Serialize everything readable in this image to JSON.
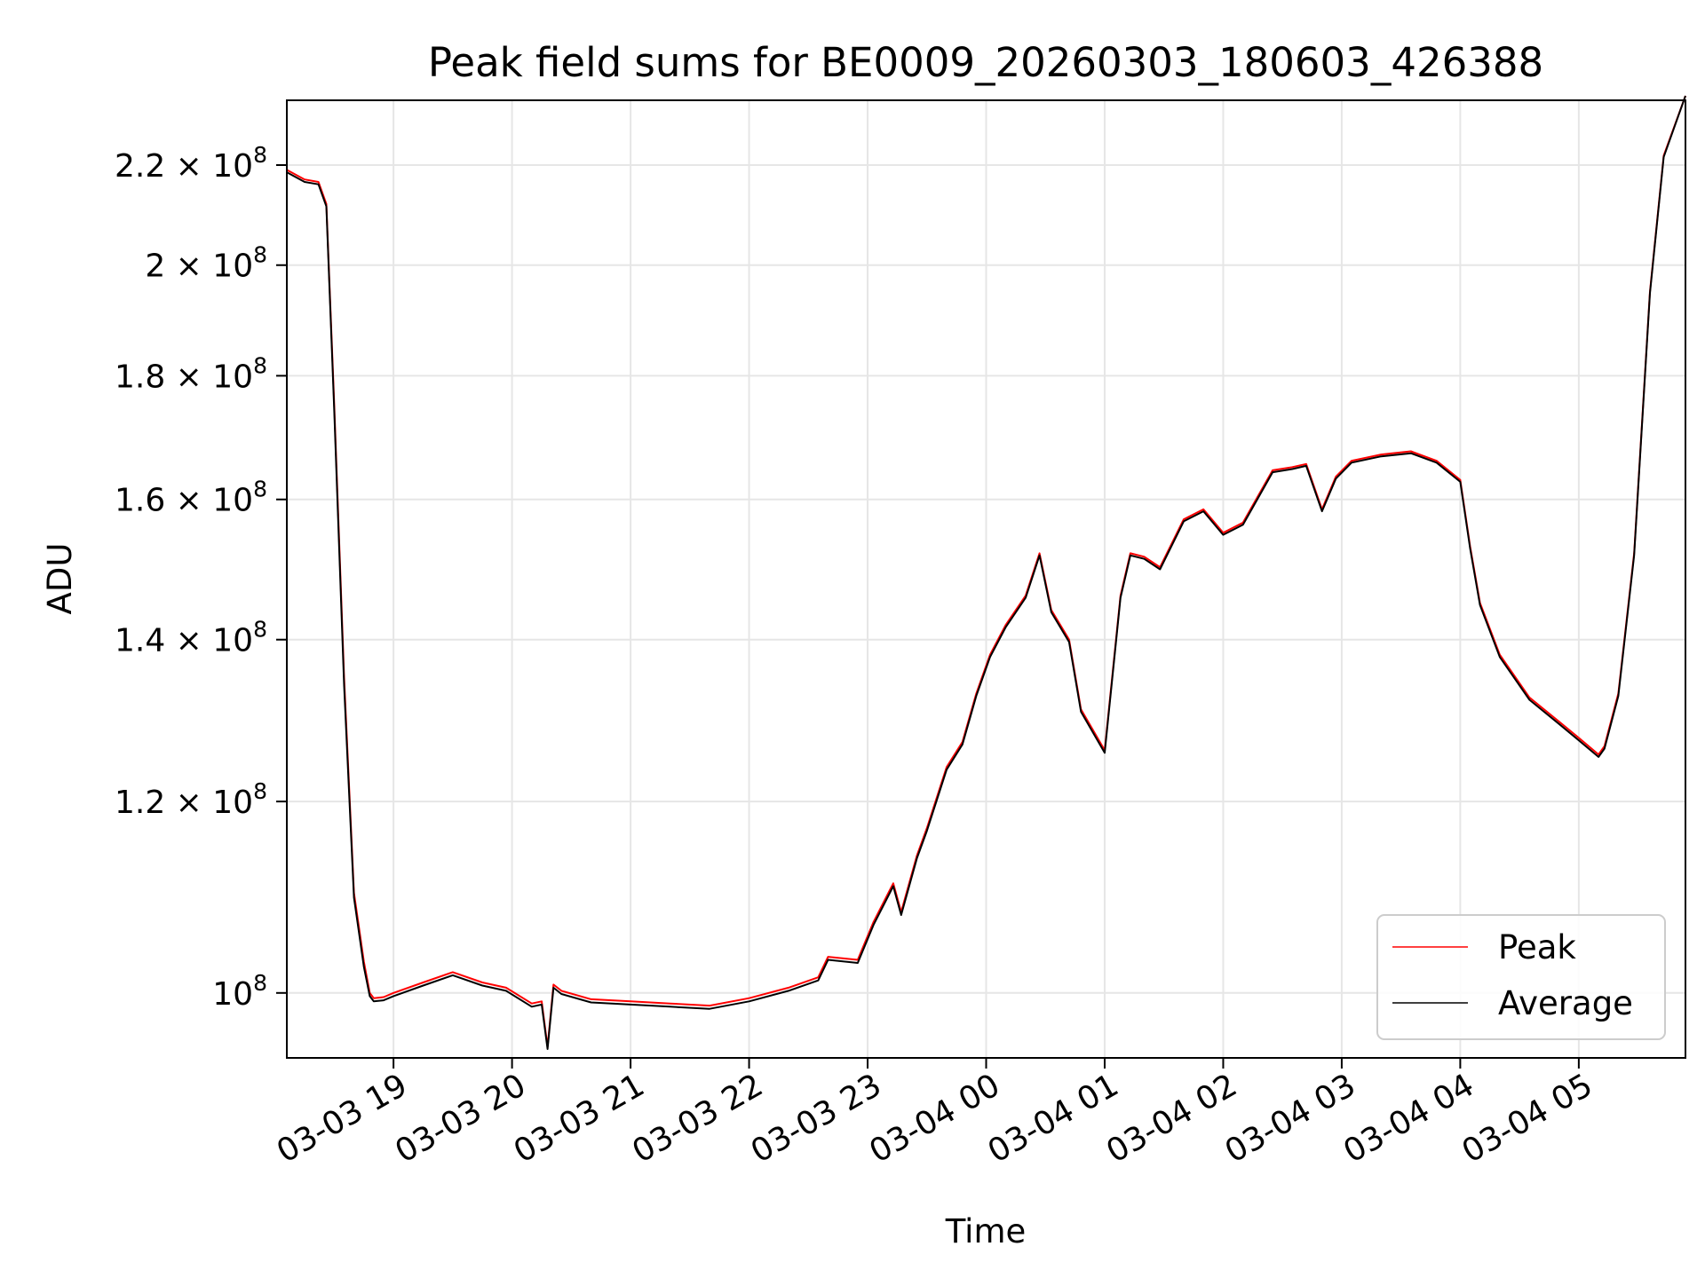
{
  "chart_data": {
    "type": "line",
    "title": "Peak field sums for BE0009_20260303_180603_426388",
    "xlabel": "Time",
    "ylabel": "ADU",
    "yscale": "log",
    "grid": true,
    "legend_placement": "lower-right",
    "xlim": [
      "2026-03-03 18:06",
      "2026-03-04 05:54"
    ],
    "ylim": [
      94000000,
      234000000
    ],
    "x_ticks": [
      {
        "value": "2026-03-03 19:00",
        "label": "03-03 19"
      },
      {
        "value": "2026-03-03 20:00",
        "label": "03-03 20"
      },
      {
        "value": "2026-03-03 21:00",
        "label": "03-03 21"
      },
      {
        "value": "2026-03-03 22:00",
        "label": "03-03 22"
      },
      {
        "value": "2026-03-03 23:00",
        "label": "03-03 23"
      },
      {
        "value": "2026-03-04 00:00",
        "label": "03-04 00"
      },
      {
        "value": "2026-03-04 01:00",
        "label": "03-04 01"
      },
      {
        "value": "2026-03-04 02:00",
        "label": "03-04 02"
      },
      {
        "value": "2026-03-04 03:00",
        "label": "03-04 03"
      },
      {
        "value": "2026-03-04 04:00",
        "label": "03-04 04"
      },
      {
        "value": "2026-03-04 05:00",
        "label": "03-04 05"
      }
    ],
    "y_ticks": [
      {
        "value": 100000000,
        "mantissa": "",
        "exponent": "8"
      },
      {
        "value": 120000000,
        "mantissa": "1.2",
        "exponent": "8"
      },
      {
        "value": 140000000,
        "mantissa": "1.4",
        "exponent": "8"
      },
      {
        "value": 160000000,
        "mantissa": "1.6",
        "exponent": "8"
      },
      {
        "value": 180000000,
        "mantissa": "1.8",
        "exponent": "8"
      },
      {
        "value": 200000000,
        "mantissa": "2",
        "exponent": "8"
      },
      {
        "value": 220000000,
        "mantissa": "2.2",
        "exponent": "8"
      }
    ],
    "x": [
      "2026-03-03 18:06",
      "2026-03-03 18:15",
      "2026-03-03 18:22",
      "2026-03-03 18:26",
      "2026-03-03 18:30",
      "2026-03-03 18:35",
      "2026-03-03 18:40",
      "2026-03-03 18:45",
      "2026-03-03 18:48",
      "2026-03-03 18:50",
      "2026-03-03 18:55",
      "2026-03-03 19:00",
      "2026-03-03 19:15",
      "2026-03-03 19:30",
      "2026-03-03 19:45",
      "2026-03-03 19:57",
      "2026-03-03 20:10",
      "2026-03-03 20:15",
      "2026-03-03 20:18",
      "2026-03-03 20:21",
      "2026-03-03 20:25",
      "2026-03-03 20:40",
      "2026-03-03 21:00",
      "2026-03-03 21:20",
      "2026-03-03 21:40",
      "2026-03-03 22:00",
      "2026-03-03 22:20",
      "2026-03-03 22:35",
      "2026-03-03 22:40",
      "2026-03-03 22:55",
      "2026-03-03 23:03",
      "2026-03-03 23:13",
      "2026-03-03 23:17",
      "2026-03-03 23:25",
      "2026-03-03 23:30",
      "2026-03-03 23:40",
      "2026-03-03 23:48",
      "2026-03-03 23:55",
      "2026-03-04 00:02",
      "2026-03-04 00:10",
      "2026-03-04 00:20",
      "2026-03-04 00:27",
      "2026-03-04 00:33",
      "2026-03-04 00:42",
      "2026-03-04 00:48",
      "2026-03-04 01:00",
      "2026-03-04 01:08",
      "2026-03-04 01:13",
      "2026-03-04 01:20",
      "2026-03-04 01:28",
      "2026-03-04 01:40",
      "2026-03-04 01:50",
      "2026-03-04 02:00",
      "2026-03-04 02:10",
      "2026-03-04 02:25",
      "2026-03-04 02:35",
      "2026-03-04 02:42",
      "2026-03-04 02:50",
      "2026-03-04 02:57",
      "2026-03-04 03:05",
      "2026-03-04 03:20",
      "2026-03-04 03:35",
      "2026-03-04 03:48",
      "2026-03-04 04:00",
      "2026-03-04 04:05",
      "2026-03-04 04:10",
      "2026-03-04 04:20",
      "2026-03-04 04:35",
      "2026-03-04 04:50",
      "2026-03-04 05:00",
      "2026-03-04 05:10",
      "2026-03-04 05:13",
      "2026-03-04 05:20",
      "2026-03-04 05:28",
      "2026-03-04 05:36",
      "2026-03-04 05:43",
      "2026-03-04 05:54"
    ],
    "series": [
      {
        "name": "Peak",
        "color": "#ff0000",
        "values": [
          219000000,
          217000000,
          216500000,
          212000000,
          175000000,
          135000000,
          110000000,
          103000000,
          100000000,
          99500000,
          99600000,
          100000000,
          101000000,
          102000000,
          101000000,
          100500000,
          99000000,
          99200000,
          95000000,
          100800000,
          100200000,
          99400000,
          99200000,
          99000000,
          98800000,
          99500000,
          100500000,
          101500000,
          103500000,
          103200000,
          107000000,
          111000000,
          108000000,
          114000000,
          117000000,
          124000000,
          127000000,
          133000000,
          138000000,
          142000000,
          146000000,
          152000000,
          144000000,
          140000000,
          131000000,
          126000000,
          146000000,
          152000000,
          151500000,
          150000000,
          157000000,
          158500000,
          155000000,
          156500000,
          164500000,
          165000000,
          165500000,
          158500000,
          163500000,
          166000000,
          167000000,
          167500000,
          166000000,
          163000000,
          153000000,
          145000000,
          138000000,
          132500000,
          129500000,
          127500000,
          125500000,
          126500000,
          133000000,
          152000000,
          195000000,
          222000000,
          235000000
        ]
      },
      {
        "name": "Average",
        "color": "#000000",
        "values": [
          218500000,
          216500000,
          216000000,
          211500000,
          174000000,
          134000000,
          109500000,
          102500000,
          99700000,
          99200000,
          99300000,
          99700000,
          100700000,
          101700000,
          100700000,
          100200000,
          98700000,
          98900000,
          94800000,
          100500000,
          99900000,
          99100000,
          98900000,
          98700000,
          98500000,
          99200000,
          100200000,
          101200000,
          103200000,
          102900000,
          106700000,
          110700000,
          107700000,
          113700000,
          116700000,
          123700000,
          126700000,
          132700000,
          137700000,
          141700000,
          145700000,
          151700000,
          143700000,
          139700000,
          130700000,
          125700000,
          145700000,
          151700000,
          151200000,
          149700000,
          156700000,
          158200000,
          154700000,
          156200000,
          164200000,
          164700000,
          165200000,
          158200000,
          163200000,
          165700000,
          166700000,
          167200000,
          165700000,
          162700000,
          152700000,
          144700000,
          137700000,
          132200000,
          129200000,
          127200000,
          125200000,
          126200000,
          132700000,
          151700000,
          194700000,
          221700000,
          235000000
        ]
      }
    ]
  }
}
